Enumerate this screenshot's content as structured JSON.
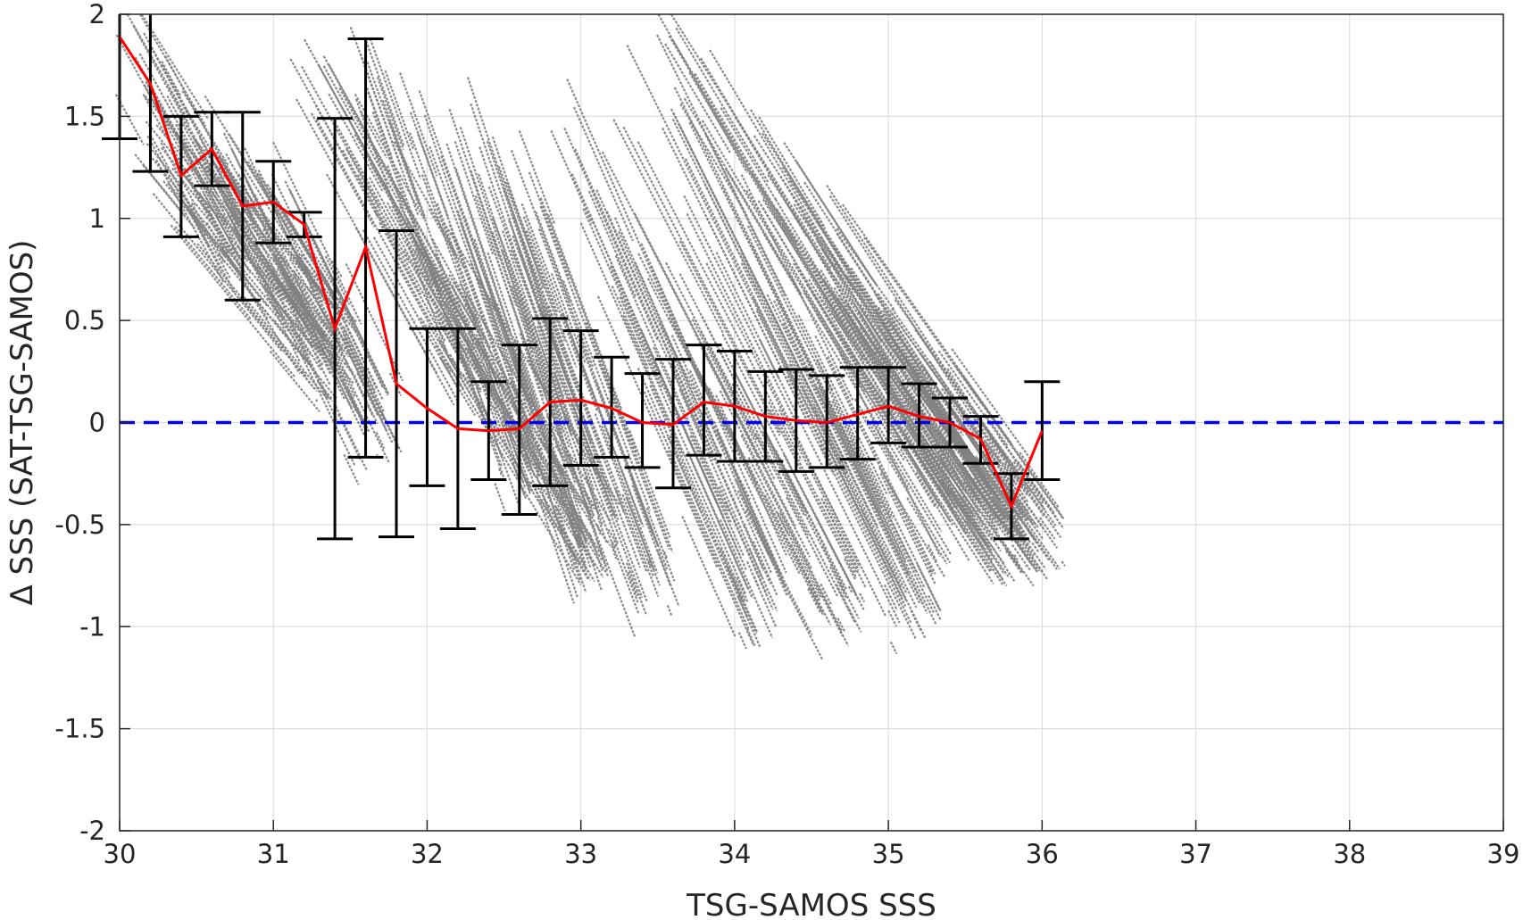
{
  "chart_data": {
    "type": "scatter",
    "title": "",
    "xlabel": "TSG-SAMOS SSS",
    "ylabel": "Δ SSS (SAT-TSG-SAMOS)",
    "xlim": [
      30,
      39
    ],
    "ylim": [
      -2,
      2
    ],
    "xticks": [
      30,
      31,
      32,
      33,
      34,
      35,
      36,
      37,
      38,
      39
    ],
    "yticks": [
      -2,
      -1.5,
      -1,
      -0.5,
      0,
      0.5,
      1,
      1.5,
      2
    ],
    "ytick_labels": [
      "-2",
      "-1.5",
      "-1",
      "-0.5",
      "0",
      "0.5",
      "1",
      "1.5",
      "2"
    ],
    "grid": true,
    "reference_line": {
      "y": 0,
      "style": "dashed",
      "color": "#0000ee"
    },
    "scatter_color": "#808080",
    "mean_line_color": "#ff0000",
    "errorbar_color": "#000000",
    "scatter_bands": [
      {
        "x": [
          30.0,
          30.8
        ],
        "y": [
          1.95,
          0.85
        ]
      },
      {
        "x": [
          30.1,
          31.4
        ],
        "y": [
          1.5,
          0.3
        ]
      },
      {
        "x": [
          30.4,
          31.3
        ],
        "y": [
          1.55,
          0.45
        ]
      },
      {
        "x": [
          30.8,
          31.7
        ],
        "y": [
          1.35,
          -0.05
        ]
      },
      {
        "x": [
          31.2,
          32.3
        ],
        "y": [
          1.8,
          0.3
        ]
      },
      {
        "x": [
          31.6,
          32.6
        ],
        "y": [
          1.9,
          -0.2
        ]
      },
      {
        "x": [
          31.9,
          33.1
        ],
        "y": [
          0.9,
          -0.6
        ]
      },
      {
        "x": [
          32.1,
          33.1
        ],
        "y": [
          1.6,
          -0.65
        ]
      },
      {
        "x": [
          32.5,
          33.5
        ],
        "y": [
          1.2,
          -0.8
        ]
      },
      {
        "x": [
          32.8,
          34.2
        ],
        "y": [
          1.5,
          -0.9
        ]
      },
      {
        "x": [
          33.1,
          34.7
        ],
        "y": [
          1.4,
          -0.95
        ]
      },
      {
        "x": [
          33.3,
          35.2
        ],
        "y": [
          2.0,
          -0.9
        ]
      },
      {
        "x": [
          33.6,
          35.5
        ],
        "y": [
          1.9,
          -0.5
        ]
      },
      {
        "x": [
          34.0,
          35.8
        ],
        "y": [
          1.5,
          -0.6
        ]
      },
      {
        "x": [
          34.5,
          36.0
        ],
        "y": [
          1.0,
          -0.6
        ]
      },
      {
        "x": [
          35.0,
          35.9
        ],
        "y": [
          0.4,
          -0.55
        ]
      }
    ],
    "series": [
      {
        "name": "",
        "type": "errorbar",
        "x": [
          30.0,
          30.2,
          30.4,
          30.6,
          30.8,
          31.0,
          31.2,
          31.4,
          31.6,
          31.8,
          32.0,
          32.2,
          32.4,
          32.6,
          32.8,
          33.0,
          33.2,
          33.4,
          33.6,
          33.8,
          34.0,
          34.2,
          34.4,
          34.6,
          34.8,
          35.0,
          35.2,
          35.4,
          35.6,
          35.8,
          36.0
        ],
        "y": [
          1.89,
          1.66,
          1.21,
          1.34,
          1.06,
          1.08,
          0.97,
          0.46,
          0.86,
          0.19,
          0.07,
          -0.03,
          -0.04,
          -0.03,
          0.1,
          0.11,
          0.07,
          0.0,
          -0.01,
          0.1,
          0.08,
          0.03,
          0.01,
          0.0,
          0.04,
          0.08,
          0.03,
          0.0,
          -0.08,
          -0.41,
          -0.04
        ],
        "low": [
          1.39,
          1.23,
          0.91,
          1.16,
          0.6,
          0.88,
          0.91,
          -0.57,
          -0.17,
          -0.56,
          -0.31,
          -0.52,
          -0.28,
          -0.45,
          -0.31,
          -0.21,
          -0.17,
          -0.22,
          -0.32,
          -0.16,
          -0.19,
          -0.19,
          -0.24,
          -0.22,
          -0.18,
          -0.1,
          -0.12,
          -0.12,
          -0.2,
          -0.57,
          -0.28
        ],
        "high": [
          2.0,
          2.0,
          1.5,
          1.52,
          1.52,
          1.28,
          1.03,
          1.49,
          1.88,
          0.94,
          0.46,
          0.46,
          0.2,
          0.38,
          0.51,
          0.45,
          0.32,
          0.24,
          0.31,
          0.38,
          0.35,
          0.25,
          0.26,
          0.23,
          0.27,
          0.27,
          0.19,
          0.12,
          0.03,
          -0.25,
          0.2
        ]
      }
    ]
  }
}
